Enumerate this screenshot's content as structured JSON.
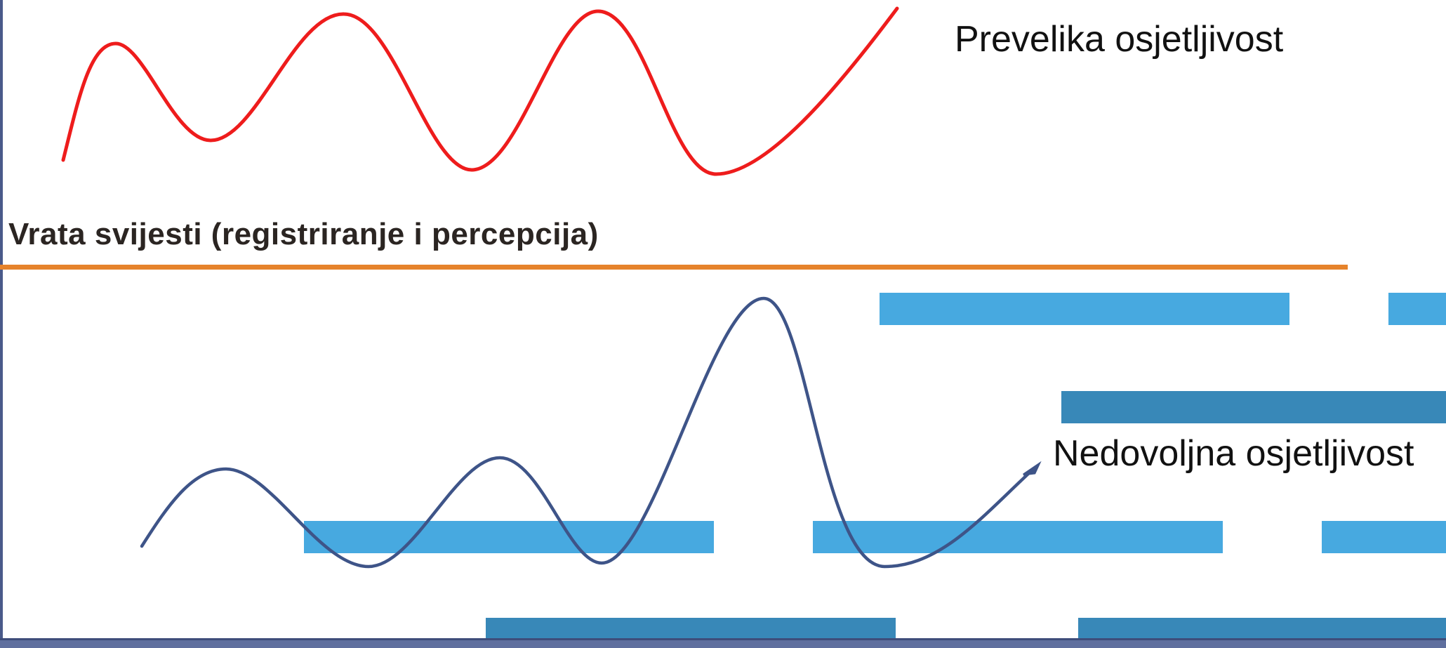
{
  "threshold": {
    "label": "Vrata svijesti (registriranje i percepcija)",
    "color": "#e6832b"
  },
  "labels": {
    "high_sensitivity": "Prevelika osjetljivost",
    "low_sensitivity": "Nedovoljna osjetljivost"
  },
  "colors": {
    "high_curve": "#ee1c1c",
    "low_curve": "#3e5488",
    "bar_light": "#47a9e0",
    "bar_dark": "#3888b8",
    "frame": "#4a5a8a"
  }
}
